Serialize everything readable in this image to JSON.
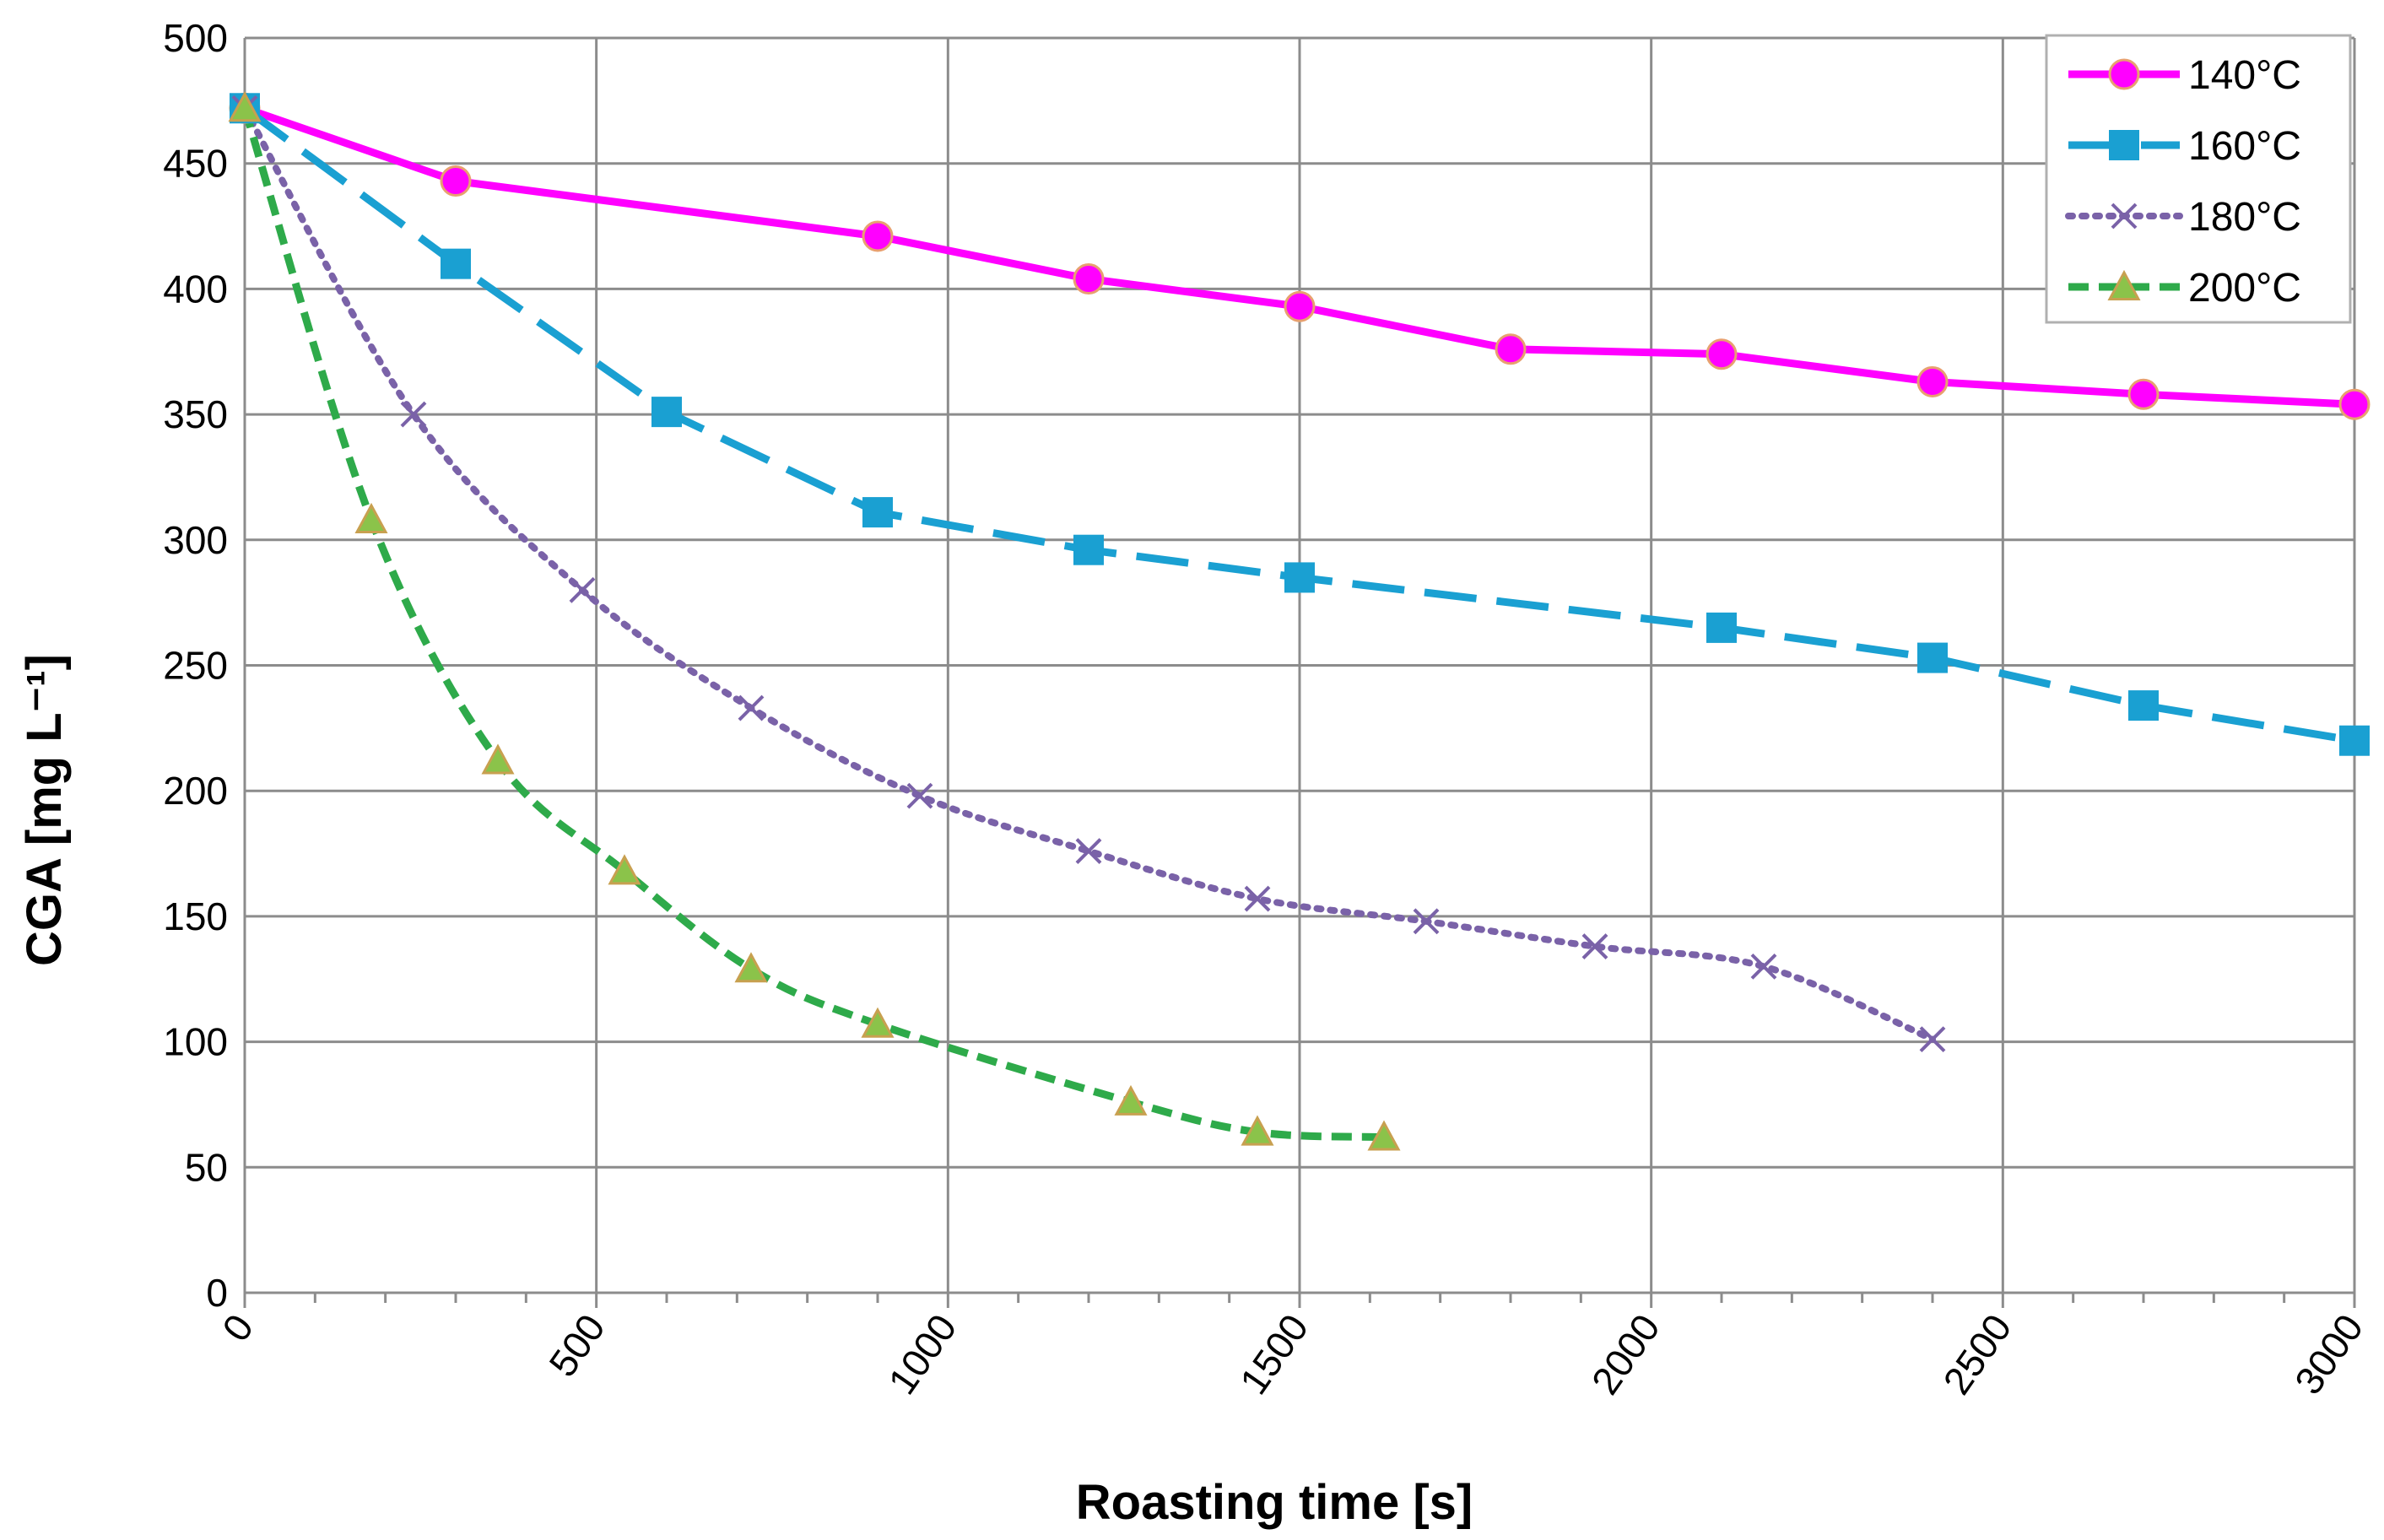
{
  "chart_data": {
    "type": "line",
    "title": "",
    "xlabel": "Roasting time  [s]",
    "ylabel": "CGA [mg L⁻¹]",
    "xlim": [
      0,
      3000
    ],
    "ylim": [
      0,
      500
    ],
    "x_major_ticks": [
      0,
      500,
      1000,
      1500,
      2000,
      2500,
      3000
    ],
    "x_minor_step": 100,
    "y_ticks": [
      0,
      50,
      100,
      150,
      200,
      250,
      300,
      350,
      400,
      450,
      500
    ],
    "grid": true,
    "legend_position": "top-right",
    "series": [
      {
        "name": "140°C",
        "color": "#FF00FF",
        "marker": "circle",
        "line_style": "solid",
        "x": [
          0,
          300,
          900,
          1200,
          1500,
          1800,
          2100,
          2400,
          2700,
          3000
        ],
        "y": [
          472,
          443,
          421,
          404,
          393,
          376,
          374,
          363,
          358,
          354
        ]
      },
      {
        "name": "160°C",
        "color": "#1AA0D2",
        "marker": "square",
        "line_style": "long-dash",
        "x": [
          0,
          300,
          600,
          900,
          1200,
          1500,
          2100,
          2400,
          2700,
          3000
        ],
        "y": [
          472,
          410,
          351,
          311,
          296,
          285,
          265,
          253,
          234,
          220
        ]
      },
      {
        "name": "180°C",
        "color": "#7A62A8",
        "marker": "x",
        "line_style": "dotted",
        "x": [
          0,
          240,
          480,
          720,
          960,
          1200,
          1440,
          1680,
          1920,
          2160,
          2400
        ],
        "y": [
          472,
          350,
          280,
          233,
          198,
          176,
          157,
          148,
          138,
          130,
          101
        ]
      },
      {
        "name": "200°C",
        "color": "#2EAA4A",
        "marker_fill": "#8BC34A",
        "marker_edge": "#C8A050",
        "marker": "triangle",
        "line_style": "dashed",
        "x": [
          0,
          180,
          360,
          540,
          720,
          900,
          1260,
          1440,
          1620
        ],
        "y": [
          472,
          308,
          212,
          168,
          129,
          107,
          76,
          64,
          62
        ]
      }
    ]
  }
}
